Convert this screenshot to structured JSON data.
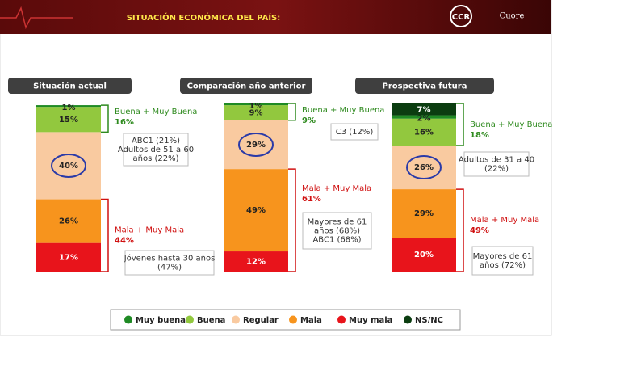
{
  "chart_data": {
    "type": "stacked_bar",
    "title": "SITUACIÓN ECONÓMICA DEL PAÍS:",
    "logos": [
      "CCR",
      "Cuore"
    ],
    "categories": [
      "Situación actual",
      "Comparación año anterior",
      "Prospectiva futura"
    ],
    "ylim": [
      0,
      100
    ],
    "series": [
      {
        "name": "Muy buena",
        "color": "#1f8a24",
        "values": [
          1,
          1,
          2
        ],
        "value_labels": [
          "1%",
          "1%",
          "2%"
        ]
      },
      {
        "name": "Buena",
        "color": "#92c83e",
        "values": [
          15,
          9,
          16
        ],
        "value_labels": [
          "15%",
          "9%",
          "16%"
        ]
      },
      {
        "name": "Regular",
        "color": "#f9caa0",
        "values": [
          40,
          29,
          26
        ],
        "value_labels": [
          "40%",
          "29%",
          "26%"
        ]
      },
      {
        "name": "Mala",
        "color": "#f7941d",
        "values": [
          26,
          49,
          29
        ],
        "value_labels": [
          "26%",
          "49%",
          "29%"
        ]
      },
      {
        "name": "Muy mala",
        "color": "#e8141b",
        "values": [
          17,
          12,
          20
        ],
        "value_labels": [
          "17%",
          "12%",
          "20%"
        ]
      },
      {
        "name": "NS/NC",
        "color": "#0b3d10",
        "values": [
          null,
          null,
          7
        ],
        "value_labels": [
          null,
          null,
          "7%"
        ]
      }
    ],
    "annotations": [
      [
        {
          "text": "Buena + Muy Buena",
          "value": 16,
          "value_label": "16%",
          "note": [
            "ABC1 (21%)",
            "Adultos de 51 a 60",
            "años (22%)"
          ]
        },
        {
          "text": "Mala + Muy Mala",
          "value": 44,
          "value_label": "44%",
          "note": [
            "Jóvenes hasta 30 años",
            "(47%)"
          ]
        }
      ],
      [
        {
          "text": "Buena + Muy Buena",
          "value": 9,
          "value_label": "9%",
          "note": [
            "C3 (12%)"
          ]
        },
        {
          "text": "Mala + Muy Mala",
          "value": 61,
          "value_label": "61%",
          "note": [
            "Mayores de 61",
            "años (68%)",
            "ABC1 (68%)"
          ]
        }
      ],
      [
        {
          "text": "Buena + Muy Buena",
          "value": 18,
          "value_label": "18%",
          "note": [
            "Adultos de 31 a 40",
            "(22%)"
          ]
        },
        {
          "text": "Mala + Muy Mala",
          "value": 49,
          "value_label": "49%",
          "note": [
            "Mayores de 61",
            "años (72%)"
          ]
        }
      ]
    ]
  }
}
